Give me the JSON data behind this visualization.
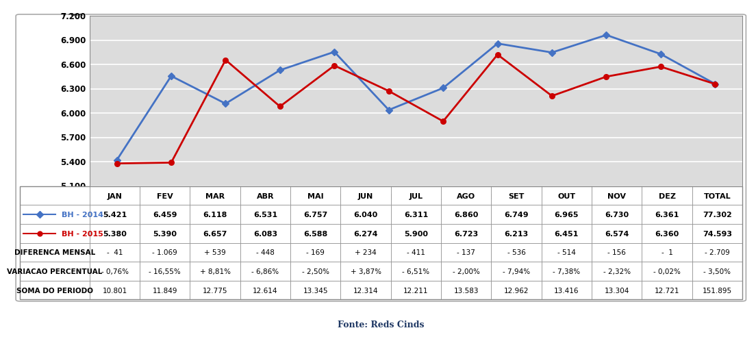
{
  "months": [
    "JAN",
    "FEV",
    "MAR",
    "ABR",
    "MAI",
    "JUN",
    "JUL",
    "AGO",
    "SET",
    "OUT",
    "NOV",
    "DEZ"
  ],
  "bh2014": [
    5421,
    6459,
    6118,
    6531,
    6757,
    6040,
    6311,
    6860,
    6749,
    6965,
    6730,
    6361
  ],
  "bh2015": [
    5380,
    5390,
    6657,
    6083,
    6588,
    6274,
    5900,
    6723,
    6213,
    6451,
    6574,
    6360
  ],
  "bh2014_total": "77.302",
  "bh2015_total": "74.593",
  "diferenca_mensal": [
    "-  41",
    "- 1.069",
    "+ 539",
    "- 448",
    "- 169",
    "+ 234",
    "- 411",
    "- 137",
    "- 536",
    "- 514",
    "- 156",
    "-  1"
  ],
  "diferenca_total": "- 2.709",
  "variacao_percentual": [
    "- 0,76%",
    "- 16,55%",
    "+ 8,81%",
    "- 6,86%",
    "- 2,50%",
    "+ 3,87%",
    "- 6,51%",
    "- 2,00%",
    "- 7,94%",
    "- 7,38%",
    "- 2,32%",
    "- 0,02%"
  ],
  "variacao_total": "- 3,50%",
  "soma_periodo": [
    "10.801",
    "11.849",
    "12.775",
    "12.614",
    "13.345",
    "12.314",
    "12.211",
    "13.583",
    "12.962",
    "13.416",
    "13.304",
    "12.721"
  ],
  "soma_total": "151.895",
  "color_2014": "#4472C4",
  "color_2015": "#CC0000",
  "label_2014": "BH - 2014",
  "label_2015": "BH - 2015",
  "ylim_min": 5100,
  "ylim_max": 7200,
  "yticks": [
    5100,
    5400,
    5700,
    6000,
    6300,
    6600,
    6900,
    7200
  ],
  "fonte_text": "Fᴏɴᴛᴇ: Rᴇᴅs Cɪɴᴅs",
  "chart_bg": "#DCDCDC",
  "total_col": "TOTAL",
  "row_labels": [
    "BH - 2014",
    "BH - 2015",
    "DIFERENCA MENSAL",
    "VARIACAO PERCENTUAL",
    "SOMA DO PERIODO"
  ],
  "fonte_color": "#1F3864",
  "border_color": "#AAAAAA"
}
